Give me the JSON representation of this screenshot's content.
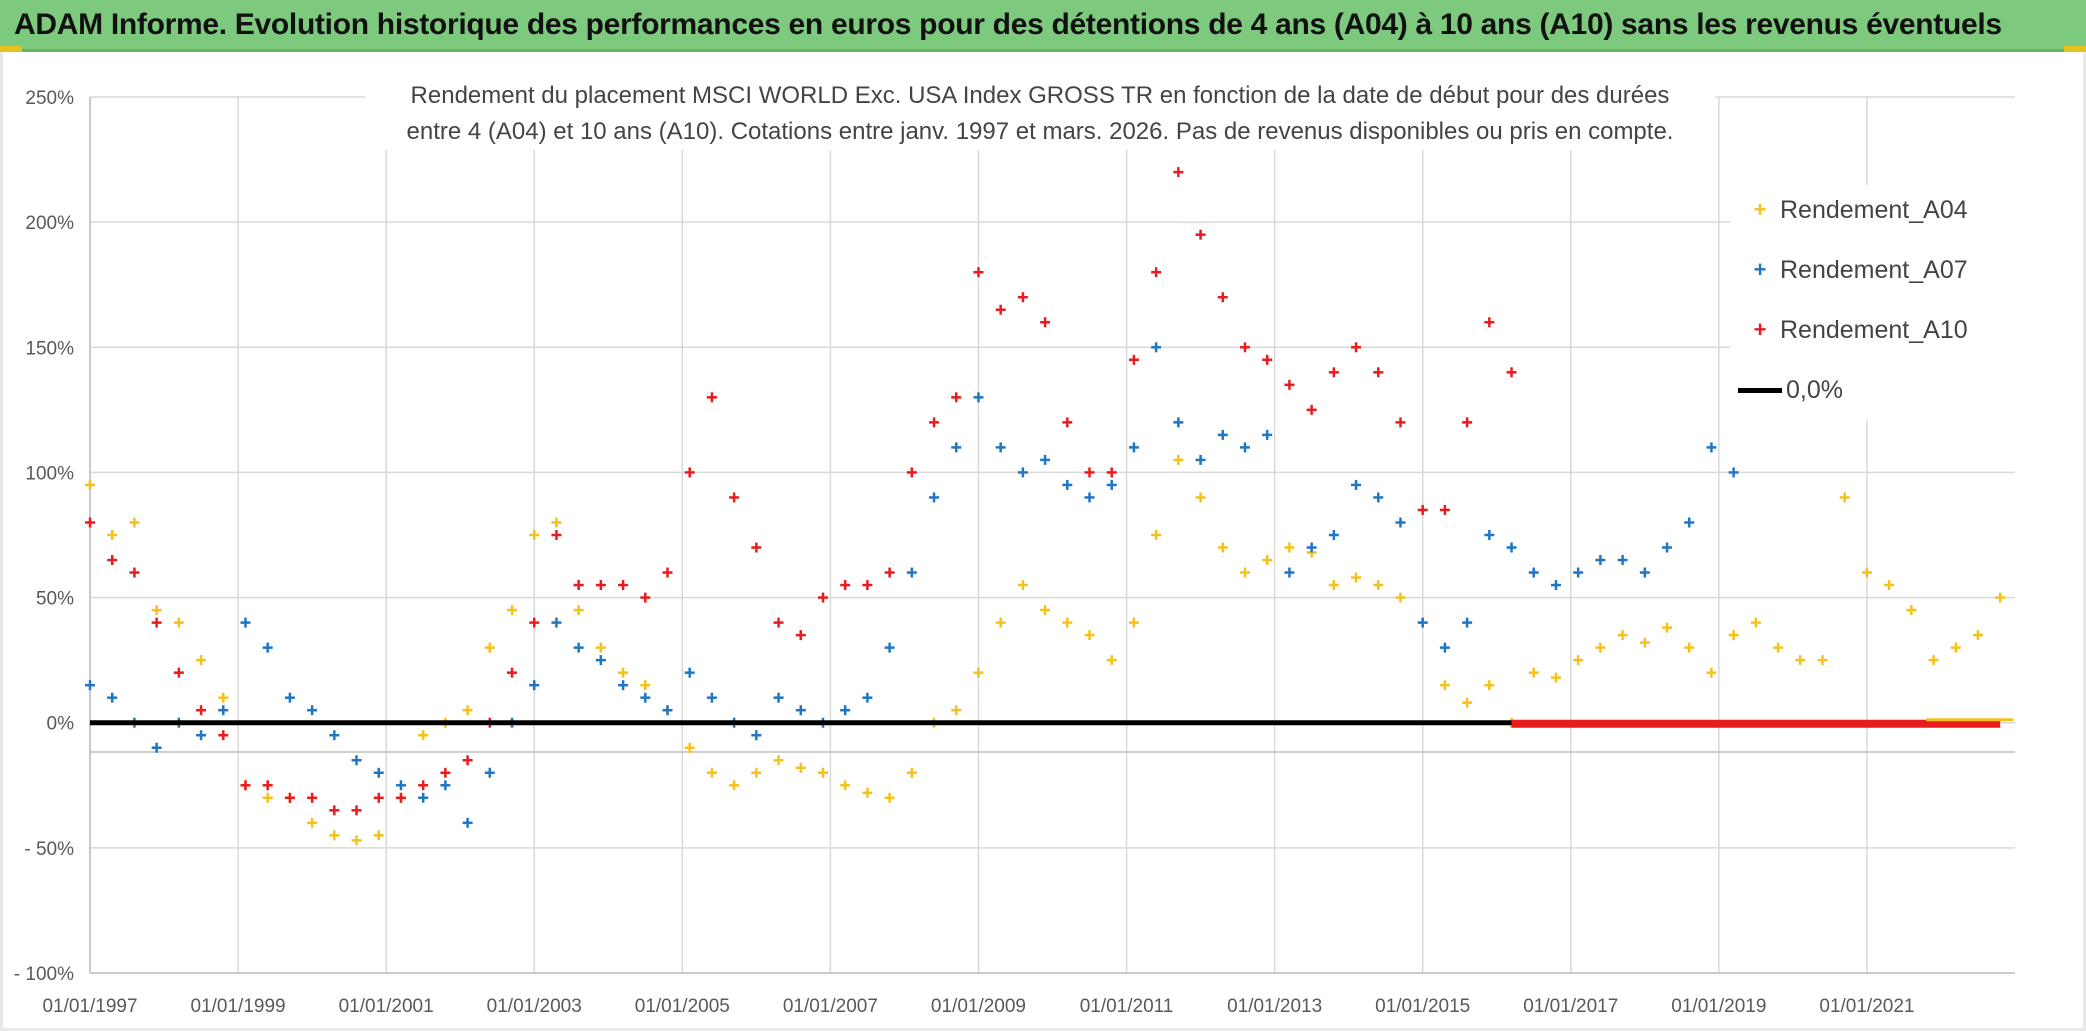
{
  "header": {
    "title": "ADAM Informe. Evolution historique des performances en euros pour des détentions de 4 ans (A04) à 10 ans (A10) sans les revenus éventuels"
  },
  "chart_data": {
    "type": "scatter",
    "subtitle_line1": "Rendement du placement MSCI WORLD Exc. USA Index GROSS TR en fonction de la date de début pour des durées",
    "subtitle_line2": "entre 4 (A04) et 10 ans (A10). Cotations entre janv. 1997 et mars. 2026. Pas de revenus disponibles ou pris en compte.",
    "xlabel": "",
    "ylabel": "",
    "xlim": [
      1997.0,
      2023.0
    ],
    "ylim": [
      -100,
      250
    ],
    "y_ticks": [
      250,
      200,
      150,
      100,
      50,
      0,
      -50,
      -100
    ],
    "y_tick_labels": [
      "250%",
      "200%",
      "150%",
      "100%",
      "50%",
      "0%",
      "- 50%",
      "- 100%"
    ],
    "x_ticks": [
      1997,
      1999,
      2001,
      2003,
      2005,
      2007,
      2009,
      2011,
      2013,
      2015,
      2017,
      2019,
      2021
    ],
    "x_tick_labels": [
      "01/01/1997",
      "01/01/1999",
      "01/01/2001",
      "01/01/2003",
      "01/01/2005",
      "01/01/2007",
      "01/01/2009",
      "01/01/2011",
      "01/01/2013",
      "01/01/2015",
      "01/01/2017",
      "01/01/2019",
      "01/01/2021"
    ],
    "grid": true,
    "legend_position": "right",
    "series": [
      {
        "name": "Rendement_A04",
        "color": "#f5c21b",
        "marker": "+",
        "x": [
          1997.0,
          1997.3,
          1997.6,
          1997.9,
          1998.2,
          1998.5,
          1998.8,
          1999.1,
          1999.4,
          1999.7,
          2000.0,
          2000.3,
          2000.6,
          2000.9,
          2001.2,
          2001.5,
          2001.8,
          2002.1,
          2002.4,
          2002.7,
          2003.0,
          2003.3,
          2003.6,
          2003.9,
          2004.2,
          2004.5,
          2004.8,
          2005.1,
          2005.4,
          2005.7,
          2006.0,
          2006.3,
          2006.6,
          2006.9,
          2007.2,
          2007.5,
          2007.8,
          2008.1,
          2008.4,
          2008.7,
          2009.0,
          2009.3,
          2009.6,
          2009.9,
          2010.2,
          2010.5,
          2010.8,
          2011.1,
          2011.4,
          2011.7,
          2012.0,
          2012.3,
          2012.6,
          2012.9,
          2013.2,
          2013.5,
          2013.8,
          2014.1,
          2014.4,
          2014.7,
          2015.0,
          2015.3,
          2015.6,
          2015.9,
          2016.2,
          2016.5,
          2016.8,
          2017.1,
          2017.4,
          2017.7,
          2018.0,
          2018.3,
          2018.6,
          2018.9,
          2019.2,
          2019.5,
          2019.8,
          2020.1,
          2020.4,
          2020.7,
          2021.0,
          2021.3,
          2021.6,
          2021.9,
          2022.2,
          2022.5,
          2022.8
        ],
        "y": [
          95,
          75,
          80,
          45,
          40,
          25,
          10,
          -25,
          -30,
          -30,
          -40,
          -45,
          -47,
          -45,
          -30,
          -5,
          0,
          5,
          30,
          45,
          75,
          80,
          45,
          30,
          20,
          15,
          5,
          -10,
          -20,
          -25,
          -20,
          -15,
          -18,
          -20,
          -25,
          -28,
          -30,
          -20,
          0,
          5,
          20,
          40,
          55,
          45,
          40,
          35,
          25,
          40,
          75,
          105,
          90,
          70,
          60,
          65,
          70,
          68,
          55,
          58,
          55,
          50,
          40,
          15,
          8,
          15,
          0,
          20,
          18,
          25,
          30,
          35,
          32,
          38,
          30,
          20,
          35,
          40,
          30,
          25,
          25,
          90,
          60,
          55,
          45,
          25,
          30,
          35,
          50
        ]
      },
      {
        "name": "Rendement_A07",
        "color": "#1f77c4",
        "marker": "+",
        "x": [
          1997.0,
          1997.3,
          1997.6,
          1997.9,
          1998.2,
          1998.5,
          1998.8,
          1999.1,
          1999.4,
          1999.7,
          2000.0,
          2000.3,
          2000.6,
          2000.9,
          2001.2,
          2001.5,
          2001.8,
          2002.1,
          2002.4,
          2002.7,
          2003.0,
          2003.3,
          2003.6,
          2003.9,
          2004.2,
          2004.5,
          2004.8,
          2005.1,
          2005.4,
          2005.7,
          2006.0,
          2006.3,
          2006.6,
          2006.9,
          2007.2,
          2007.5,
          2007.8,
          2008.1,
          2008.4,
          2008.7,
          2009.0,
          2009.3,
          2009.6,
          2009.9,
          2010.2,
          2010.5,
          2010.8,
          2011.1,
          2011.4,
          2011.7,
          2012.0,
          2012.3,
          2012.6,
          2012.9,
          2013.2,
          2013.5,
          2013.8,
          2014.1,
          2014.4,
          2014.7,
          2015.0,
          2015.3,
          2015.6,
          2015.9,
          2016.2,
          2016.5,
          2016.8,
          2017.1,
          2017.4,
          2017.7,
          2018.0,
          2018.3,
          2018.6,
          2018.9,
          2019.2
        ],
        "y": [
          15,
          10,
          0,
          -10,
          0,
          -5,
          5,
          40,
          30,
          10,
          5,
          -5,
          -15,
          -20,
          -25,
          -30,
          -25,
          -40,
          -20,
          0,
          15,
          40,
          30,
          25,
          15,
          10,
          5,
          20,
          10,
          0,
          -5,
          10,
          5,
          0,
          5,
          10,
          30,
          60,
          90,
          110,
          130,
          110,
          100,
          105,
          95,
          90,
          95,
          110,
          150,
          120,
          105,
          115,
          110,
          115,
          60,
          70,
          75,
          95,
          90,
          80,
          40,
          30,
          40,
          75,
          70,
          60,
          55,
          60,
          65,
          65,
          60,
          70,
          80,
          110,
          100
        ]
      },
      {
        "name": "Rendement_A10",
        "color": "#e81c1c",
        "marker": "+",
        "x": [
          1997.0,
          1997.3,
          1997.6,
          1997.9,
          1998.2,
          1998.5,
          1998.8,
          1999.1,
          1999.4,
          1999.7,
          2000.0,
          2000.3,
          2000.6,
          2000.9,
          2001.2,
          2001.5,
          2001.8,
          2002.1,
          2002.4,
          2002.7,
          2003.0,
          2003.3,
          2003.6,
          2003.9,
          2004.2,
          2004.5,
          2004.8,
          2005.1,
          2005.4,
          2005.7,
          2006.0,
          2006.3,
          2006.6,
          2006.9,
          2007.2,
          2007.5,
          2007.8,
          2008.1,
          2008.4,
          2008.7,
          2009.0,
          2009.3,
          2009.6,
          2009.9,
          2010.2,
          2010.5,
          2010.8,
          2011.1,
          2011.4,
          2011.7,
          2012.0,
          2012.3,
          2012.6,
          2012.9,
          2013.2,
          2013.5,
          2013.8,
          2014.1,
          2014.4,
          2014.7,
          2015.0,
          2015.3,
          2015.6,
          2015.9,
          2016.2
        ],
        "y": [
          80,
          65,
          60,
          40,
          20,
          5,
          -5,
          -25,
          -25,
          -30,
          -30,
          -35,
          -35,
          -30,
          -30,
          -25,
          -20,
          -15,
          0,
          20,
          40,
          75,
          55,
          55,
          55,
          50,
          60,
          100,
          130,
          90,
          70,
          40,
          35,
          50,
          55,
          55,
          60,
          100,
          120,
          130,
          180,
          165,
          170,
          160,
          120,
          100,
          100,
          145,
          180,
          220,
          195,
          170,
          150,
          145,
          135,
          125,
          140,
          150,
          140,
          120,
          85,
          85,
          120,
          160,
          140
        ]
      },
      {
        "name": "0,0%",
        "color": "#000000",
        "marker": "line",
        "x": [
          1997.0,
          2016.2
        ],
        "y": [
          0,
          0
        ]
      }
    ]
  }
}
